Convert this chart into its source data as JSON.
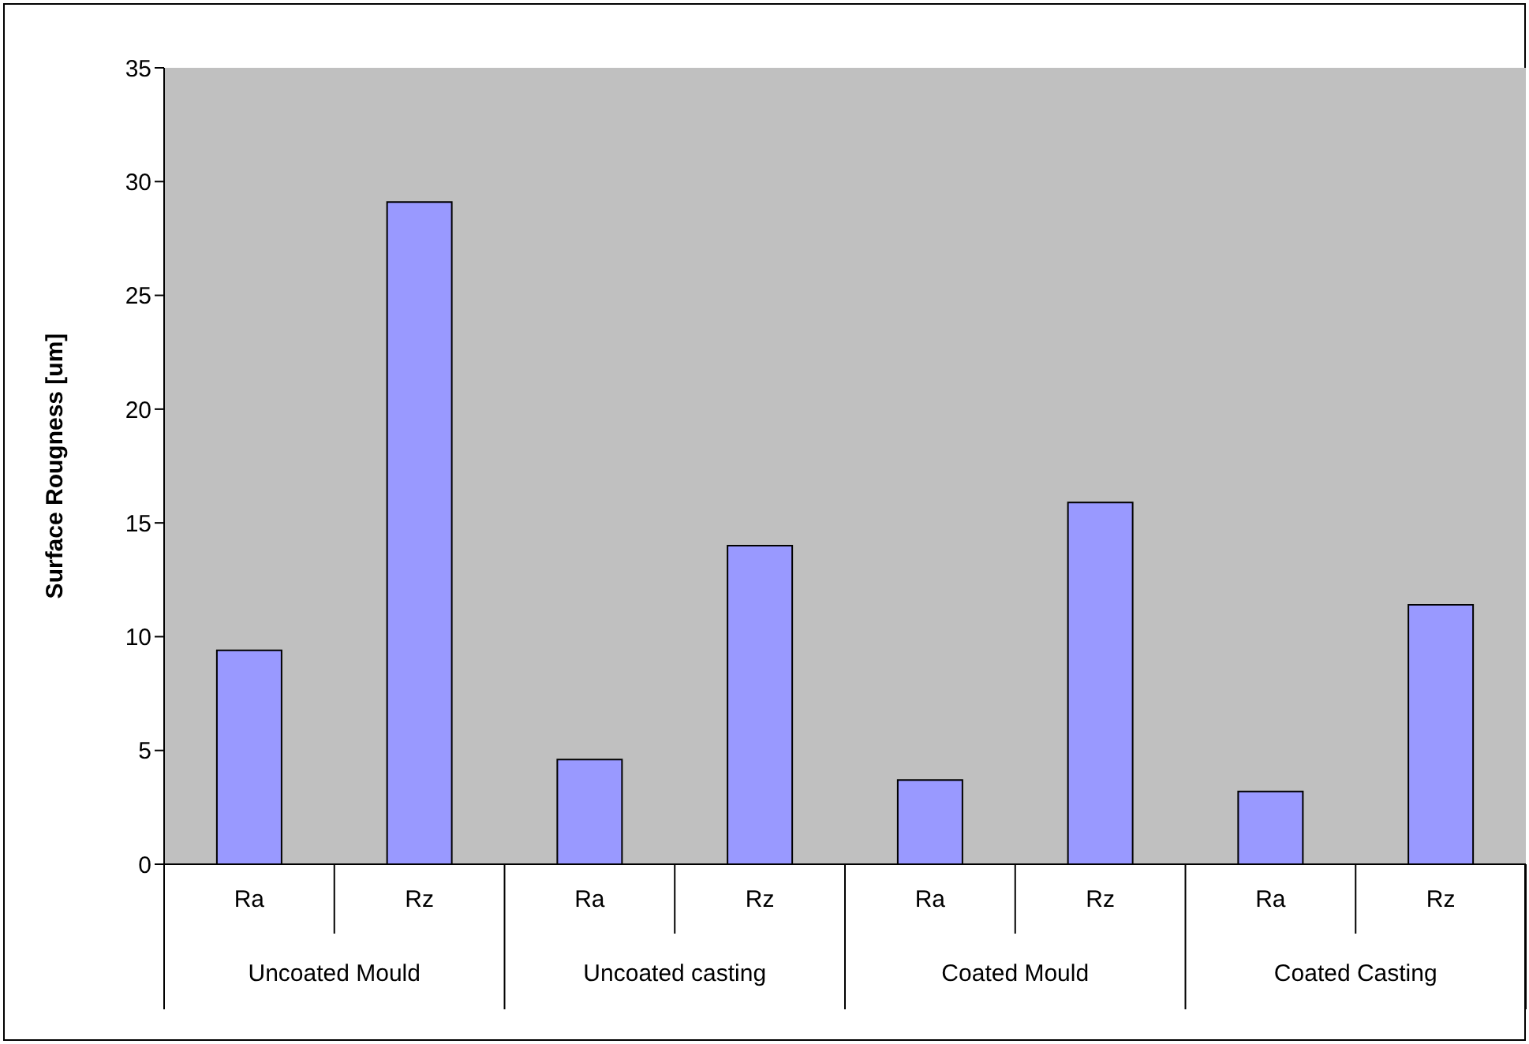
{
  "chart_data": {
    "type": "bar",
    "ylabel": "Surface Rougness [um]",
    "categories": [
      "Ra",
      "Rz",
      "Ra",
      "Rz",
      "Ra",
      "Rz",
      "Ra",
      "Rz"
    ],
    "values": [
      9.4,
      29.1,
      4.6,
      14.0,
      3.7,
      15.9,
      3.2,
      11.4
    ],
    "color": "#9999ff",
    "annotations": [
      "Uncoated Mould",
      "Uncoated casting",
      "Coated Mould",
      "Coated Casting"
    ],
    "ylim": [
      0,
      35
    ],
    "yticks": [
      0,
      5,
      10,
      15,
      20,
      25,
      30,
      35
    ],
    "grid": false,
    "legend": false
  }
}
